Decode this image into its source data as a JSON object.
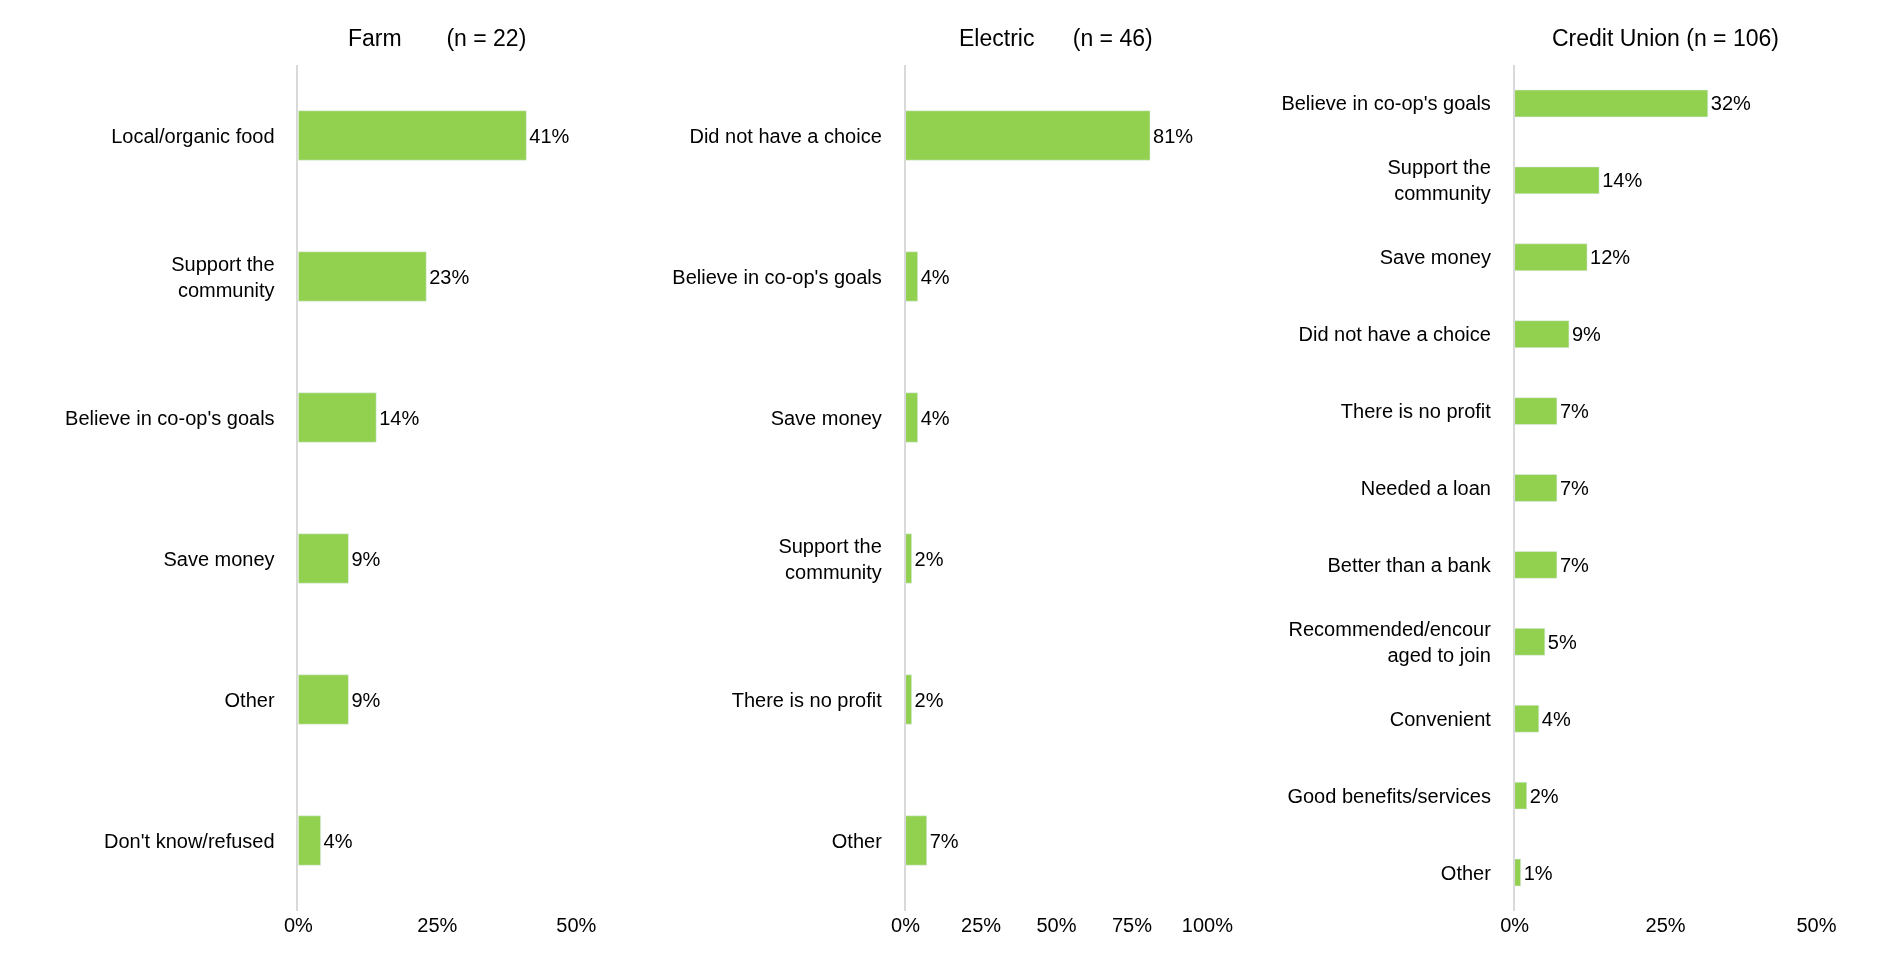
{
  "chart_data": [
    {
      "type": "bar",
      "orientation": "horizontal",
      "title": "Farm       (n = 22)",
      "categories": [
        "Local/organic food",
        "Support the\ncommunity",
        "Believe in co-op's goals",
        "Save money",
        "Other",
        "Don't know/refused"
      ],
      "values": [
        41,
        23,
        14,
        9,
        9,
        4
      ],
      "value_labels": [
        "41%",
        "23%",
        "14%",
        "9%",
        "9%",
        "4%"
      ],
      "color": "#92d050",
      "xlim": [
        0,
        50
      ],
      "xticks": [
        {
          "value": 0,
          "label": "0%"
        },
        {
          "value": 25,
          "label": "25%"
        },
        {
          "value": 50,
          "label": "50%"
        }
      ]
    },
    {
      "type": "bar",
      "orientation": "horizontal",
      "title": "Electric      (n = 46)",
      "categories": [
        "Did not have a choice",
        "Believe in co-op's goals",
        "Save money",
        "Support the\ncommunity",
        "There is no profit",
        "Other"
      ],
      "values": [
        81,
        4,
        4,
        2,
        2,
        7
      ],
      "value_labels": [
        "81%",
        "4%",
        "4%",
        "2%",
        "2%",
        "7%"
      ],
      "color": "#92d050",
      "xlim": [
        0,
        100
      ],
      "xticks": [
        {
          "value": 0,
          "label": "0%"
        },
        {
          "value": 25,
          "label": "25%"
        },
        {
          "value": 50,
          "label": "50%"
        },
        {
          "value": 75,
          "label": "75%"
        },
        {
          "value": 100,
          "label": "100%"
        }
      ]
    },
    {
      "type": "bar",
      "orientation": "horizontal",
      "title": "Credit Union (n = 106)",
      "categories": [
        "Believe in co-op's goals",
        "Support the\ncommunity",
        "Save money",
        "Did not have a choice",
        "There is no profit",
        "Needed a loan",
        "Better than a bank",
        "Recommended/encour\naged to join",
        "Convenient",
        "Good benefits/services",
        "Other"
      ],
      "values": [
        32,
        14,
        12,
        9,
        7,
        7,
        7,
        5,
        4,
        2,
        1
      ],
      "value_labels": [
        "32%",
        "14%",
        "12%",
        "9%",
        "7%",
        "7%",
        "7%",
        "5%",
        "4%",
        "2%",
        "1%"
      ],
      "color": "#92d050",
      "xlim": [
        0,
        50
      ],
      "xticks": [
        {
          "value": 0,
          "label": "0%"
        },
        {
          "value": 25,
          "label": "25%"
        },
        {
          "value": 50,
          "label": "50%"
        }
      ]
    }
  ]
}
